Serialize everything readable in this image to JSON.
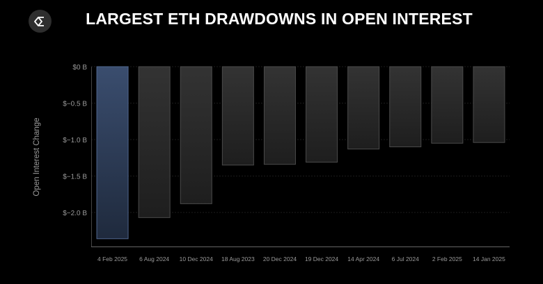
{
  "chart_data": {
    "type": "bar",
    "title": "LARGEST ETH DRAWDOWNS IN OPEN INTEREST",
    "xlabel": "",
    "ylabel": "Open Interest Change",
    "categories": [
      "4 Feb 2025",
      "6 Aug 2024",
      "10 Dec 2024",
      "18 Aug 2023",
      "20 Dec 2024",
      "19 Dec 2024",
      "14 Apr 2024",
      "6 Jul 2024",
      "2 Feb 2025",
      "14 Jan 2025"
    ],
    "values": [
      -2.36,
      -2.07,
      -1.88,
      -1.35,
      -1.34,
      -1.31,
      -1.13,
      -1.1,
      -1.05,
      -1.04
    ],
    "unit": "B USD",
    "ylim": [
      -2.47,
      0
    ],
    "yticks": [
      0,
      -0.5,
      -1.0,
      -1.5,
      -2.0
    ],
    "ytick_labels": [
      "$0 B",
      "$−0.5 B",
      "$−1.0 B",
      "$−1.5 B",
      "$−2.0 B"
    ],
    "grid": true,
    "highlight_index": 0,
    "colors": {
      "highlight": "#34425e",
      "bar": "#2a2a2a",
      "background": "#000000"
    }
  },
  "logo": {
    "icon": "sigma-logo-icon"
  }
}
